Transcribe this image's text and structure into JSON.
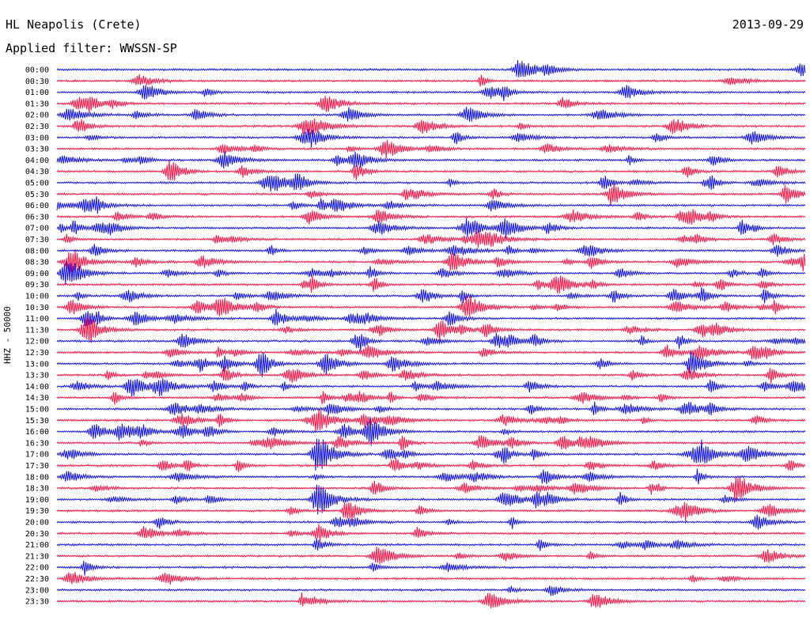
{
  "header": {
    "station": "HL Neapolis (Crete)",
    "date": "2013-09-29",
    "filter": "Applied filter: WWSSN-SP"
  },
  "axis": {
    "ylabel": "HHZ - 50000"
  },
  "colors": {
    "trace_a": "#1414e6",
    "trace_b": "#ff1446",
    "background": "#ffffff"
  },
  "chart_data": {
    "type": "line",
    "title": "HL Neapolis (Crete)",
    "date": "2013-09-29",
    "filter": "WWSSN-SP",
    "ylabel": "HHZ - 50000",
    "grid": false,
    "legend": "none",
    "series_colors_alternate": [
      "#1414e6",
      "#ff1446"
    ],
    "rows": [
      "00:00",
      "00:30",
      "01:00",
      "01:30",
      "02:00",
      "02:30",
      "03:00",
      "03:30",
      "04:00",
      "04:30",
      "05:00",
      "05:30",
      "06:00",
      "06:30",
      "07:00",
      "07:30",
      "08:00",
      "08:30",
      "09:00",
      "09:30",
      "10:00",
      "10:30",
      "11:00",
      "11:30",
      "12:00",
      "12:30",
      "13:00",
      "13:30",
      "14:00",
      "14:30",
      "15:00",
      "15:30",
      "16:00",
      "16:30",
      "17:00",
      "17:30",
      "18:00",
      "18:30",
      "19:00",
      "19:30",
      "20:00",
      "20:30",
      "21:00",
      "21:30",
      "22:00",
      "22:30",
      "23:00",
      "23:30"
    ],
    "events": [
      {
        "row": "00:00",
        "t": 0.62,
        "amp": 1.6
      },
      {
        "row": "00:30",
        "t": 0.11,
        "amp": 0.9
      },
      {
        "row": "01:00",
        "t": 0.12,
        "amp": 1.2
      },
      {
        "row": "01:00",
        "t": 0.76,
        "amp": 1.0
      },
      {
        "row": "01:30",
        "t": 0.03,
        "amp": 1.1
      },
      {
        "row": "01:30",
        "t": 0.36,
        "amp": 1.3
      },
      {
        "row": "02:00",
        "t": 0.39,
        "amp": 1.0
      },
      {
        "row": "02:00",
        "t": 0.55,
        "amp": 1.2
      },
      {
        "row": "02:30",
        "t": 0.49,
        "amp": 1.1
      },
      {
        "row": "03:00",
        "t": 0.34,
        "amp": 1.0
      },
      {
        "row": "03:00",
        "t": 0.93,
        "amp": 1.0
      },
      {
        "row": "03:30",
        "t": 0.44,
        "amp": 1.4
      },
      {
        "row": "04:00",
        "t": 0.4,
        "amp": 1.3
      },
      {
        "row": "05:00",
        "t": 0.29,
        "amp": 1.2
      },
      {
        "row": "06:00",
        "t": 0.04,
        "amp": 1.2
      },
      {
        "row": "07:00",
        "t": 0.6,
        "amp": 1.4
      },
      {
        "row": "08:30",
        "t": 0.53,
        "amp": 1.5
      },
      {
        "row": "09:00",
        "t": 0.02,
        "amp": 1.2
      },
      {
        "row": "10:30",
        "t": 0.55,
        "amp": 1.8
      },
      {
        "row": "11:30",
        "t": 0.04,
        "amp": 1.6
      },
      {
        "row": "13:00",
        "t": 0.36,
        "amp": 1.4
      },
      {
        "row": "14:00",
        "t": 0.1,
        "amp": 1.5
      },
      {
        "row": "15:30",
        "t": 0.35,
        "amp": 1.6
      },
      {
        "row": "16:00",
        "t": 0.42,
        "amp": 1.8
      },
      {
        "row": "17:00",
        "t": 0.35,
        "amp": 3.0
      },
      {
        "row": "17:00",
        "t": 0.86,
        "amp": 1.9
      },
      {
        "row": "18:30",
        "t": 0.91,
        "amp": 2.0
      },
      {
        "row": "19:00",
        "t": 0.35,
        "amp": 2.5
      },
      {
        "row": "19:00",
        "t": 0.6,
        "amp": 1.4
      },
      {
        "row": "21:30",
        "t": 0.43,
        "amp": 1.6
      },
      {
        "row": "22:30",
        "t": 0.02,
        "amp": 1.1
      },
      {
        "row": "23:30",
        "t": 0.58,
        "amp": 1.3
      },
      {
        "row": "23:30",
        "t": 0.72,
        "amp": 1.2
      }
    ]
  }
}
